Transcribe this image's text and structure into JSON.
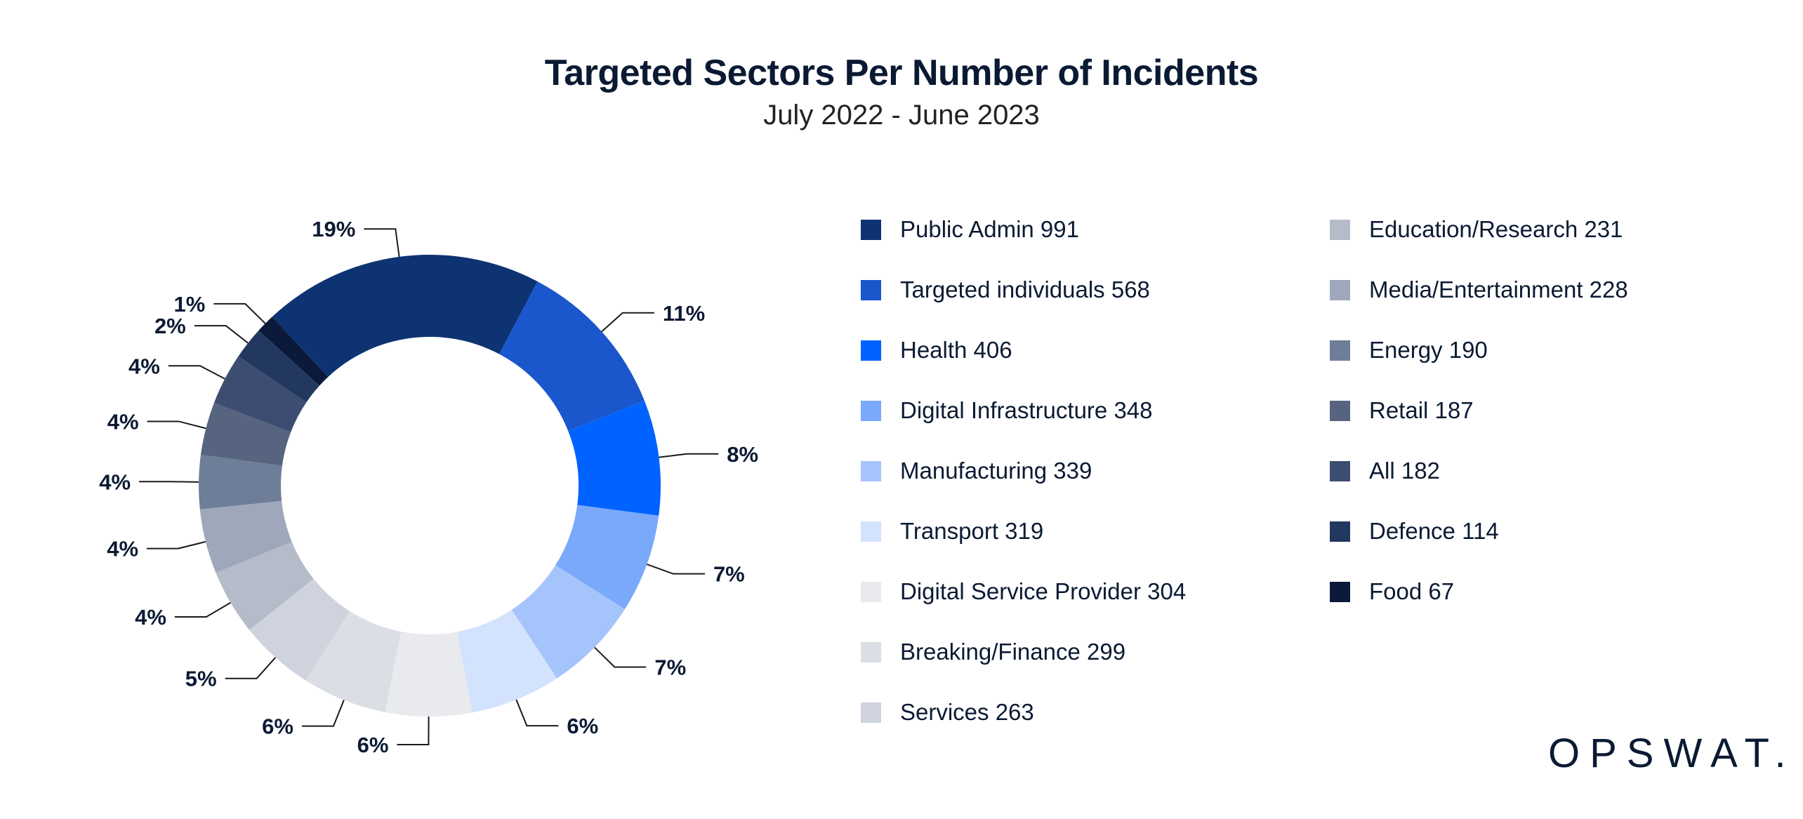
{
  "chart_data": {
    "type": "pie",
    "variant": "donut",
    "title": "Targeted Sectors Per Number of Incidents",
    "subtitle": "July 2022 - June 2023",
    "legend_placement": "right",
    "slices": [
      {
        "label": "Public Admin",
        "value": 991,
        "percent_label": "19%",
        "color": "#0d3372"
      },
      {
        "label": "Targeted individuals",
        "value": 568,
        "percent_label": "11%",
        "color": "#1a56cc"
      },
      {
        "label": "Health",
        "value": 406,
        "percent_label": "8%",
        "color": "#0063ff"
      },
      {
        "label": "Digital Infrastructure",
        "value": 348,
        "percent_label": "7%",
        "color": "#7aa8fb"
      },
      {
        "label": "Manufacturing",
        "value": 339,
        "percent_label": "7%",
        "color": "#a6c4fc"
      },
      {
        "label": "Transport",
        "value": 319,
        "percent_label": "6%",
        "color": "#d3e2fd"
      },
      {
        "label": "Digital Service Provider",
        "value": 304,
        "percent_label": "6%",
        "color": "#e8eaee"
      },
      {
        "label": "Breaking/Finance",
        "value": 299,
        "percent_label": "6%",
        "color": "#dcdee6"
      },
      {
        "label": "Services",
        "value": 263,
        "percent_label": "5%",
        "color": "#ced3dd"
      },
      {
        "label": "Education/Research",
        "value": 231,
        "percent_label": "4%",
        "color": "#b5bbc9"
      },
      {
        "label": "Media/Entertainment",
        "value": 228,
        "percent_label": "4%",
        "color": "#9fa8bb"
      },
      {
        "label": "Energy",
        "value": 190,
        "percent_label": "4%",
        "color": "#6e7d98"
      },
      {
        "label": "Retail",
        "value": 187,
        "percent_label": "4%",
        "color": "#56647f"
      },
      {
        "label": "All",
        "value": 182,
        "percent_label": "4%",
        "color": "#3d4d72"
      },
      {
        "label": "Defence",
        "value": 114,
        "percent_label": "2%",
        "color": "#233860"
      },
      {
        "label": "Food",
        "value": 67,
        "percent_label": "1%",
        "color": "#0b1a3a"
      }
    ]
  },
  "legend": {
    "items": [
      "Public Admin 991",
      "Targeted individuals 568",
      "Health 406",
      "Digital Infrastructure 348",
      "Manufacturing 339",
      "Transport 319",
      "Digital Service Provider 304",
      "Breaking/Finance 299",
      "Services 263",
      "Education/Research 231",
      "Media/Entertainment 228",
      "Energy 190",
      "Retail 187",
      "All 182",
      "Defence 114",
      "Food 67"
    ]
  },
  "logo": {
    "text": "OPSWAT."
  }
}
